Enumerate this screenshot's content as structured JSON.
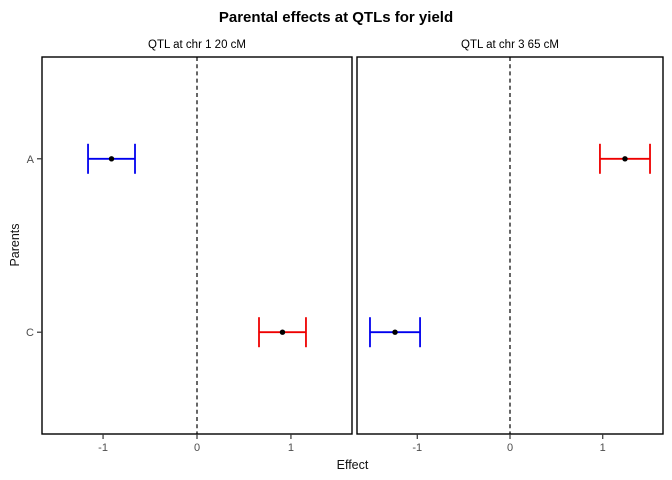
{
  "figure": {
    "title": "Parental effects at QTLs for yield",
    "background": "#ffffff"
  },
  "chart_data": {
    "type": "scatter",
    "subtype": "dot-plot-with-error-bars",
    "title": "Parental effects at QTLs for yield",
    "xlabel": "Effect",
    "ylabel": "Parents",
    "xlim": [
      -1.65,
      1.65
    ],
    "x_ticks": [
      "-1",
      "0",
      "1"
    ],
    "x_tick_values": [
      -1,
      0,
      1
    ],
    "y_categories": [
      "A",
      "C"
    ],
    "reference_line_x": 0,
    "grid": false,
    "legend": "none",
    "panels": [
      {
        "label": "QTL at chr 1 20 cM",
        "points": [
          {
            "parent": "A",
            "estimate": -0.91,
            "ci_low": -1.16,
            "ci_high": -0.66,
            "color": "#0000ee"
          },
          {
            "parent": "C",
            "estimate": 0.91,
            "ci_low": 0.66,
            "ci_high": 1.16,
            "color": "#ee0000"
          }
        ]
      },
      {
        "label": "QTL at chr 3 65 cM",
        "points": [
          {
            "parent": "A",
            "estimate": 1.24,
            "ci_low": 0.97,
            "ci_high": 1.51,
            "color": "#ee0000"
          },
          {
            "parent": "C",
            "estimate": -1.24,
            "ci_low": -1.51,
            "ci_high": -0.97,
            "color": "#0000ee"
          }
        ]
      }
    ],
    "point_color": "#000000",
    "colors": {
      "panel_border": "#000000",
      "reference_line": "#000000",
      "tick": "#333333",
      "tick_label": "#4d4d4d"
    }
  }
}
